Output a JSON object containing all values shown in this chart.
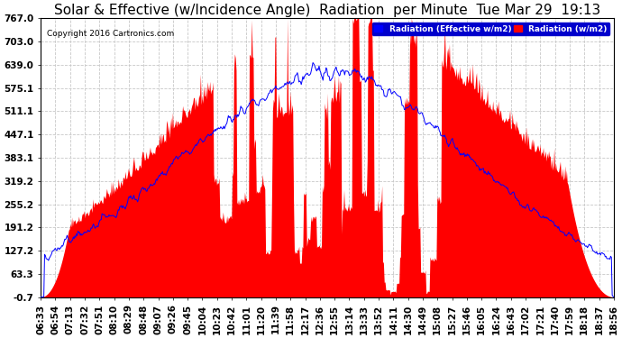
{
  "title": "Solar & Effective (w/Incidence Angle)  Radiation  per Minute  Tue Mar 29  19:13",
  "copyright": "Copyright 2016 Cartronics.com",
  "legend_blue": "Radiation (Effective w/m2)",
  "legend_red": "Radiation (w/m2)",
  "yticks": [
    767.0,
    703.0,
    639.0,
    575.1,
    511.1,
    447.1,
    383.1,
    319.2,
    255.2,
    191.2,
    127.2,
    63.3,
    -0.7
  ],
  "ylim": [
    -0.7,
    767.0
  ],
  "bg_color": "#ffffff",
  "plot_bg_color": "#ffffff",
  "grid_color": "#c8c8c8",
  "bar_color": "#ff0000",
  "line_color": "#0000ff",
  "title_fontsize": 11,
  "tick_fontsize": 7.5,
  "n_points": 740,
  "x_labels": [
    "06:33",
    "06:54",
    "07:13",
    "07:32",
    "07:51",
    "08:10",
    "08:29",
    "08:48",
    "09:07",
    "09:26",
    "09:45",
    "10:04",
    "10:23",
    "10:42",
    "11:01",
    "11:20",
    "11:39",
    "11:58",
    "12:17",
    "12:36",
    "12:55",
    "13:14",
    "13:33",
    "13:52",
    "14:11",
    "14:30",
    "14:49",
    "15:08",
    "15:27",
    "15:46",
    "16:05",
    "16:24",
    "16:43",
    "17:02",
    "17:21",
    "17:40",
    "17:59",
    "18:18",
    "18:37",
    "18:56"
  ]
}
